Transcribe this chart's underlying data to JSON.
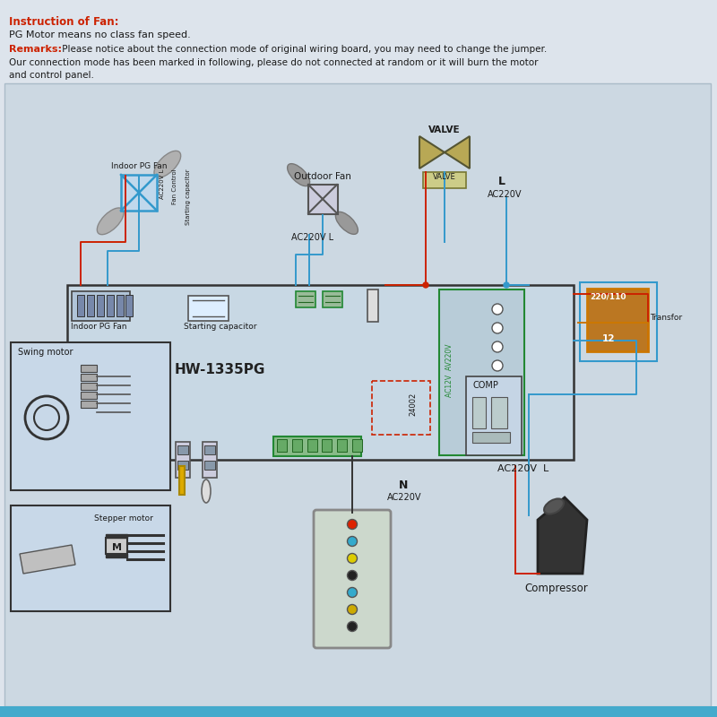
{
  "bg_color": "#dde4ec",
  "title_text": "Instruction of Fan:",
  "title_color": "#cc2200",
  "line1": "PG Motor means no class fan speed.",
  "line2_label": "Remarks:",
  "line2_label_color": "#cc2200",
  "line2_text": " Please notice about the connection mode of original wiring board, you may need to change the jumper.",
  "line3": "Our connection mode has been marked in following, please do not connected at random or it will burn the motor",
  "line4": "and control panel.",
  "text_color": "#1a1a1a",
  "hw_label": "HW-1335PG",
  "red_wire": "#cc2200",
  "blue_wire": "#3399cc",
  "orange_wire": "#cc7700",
  "green_wire": "#228833",
  "board_face": "#c8d8e4",
  "board_edge": "#333333",
  "trans_face": "#bb7722",
  "inner_face": "#b8ccd8"
}
